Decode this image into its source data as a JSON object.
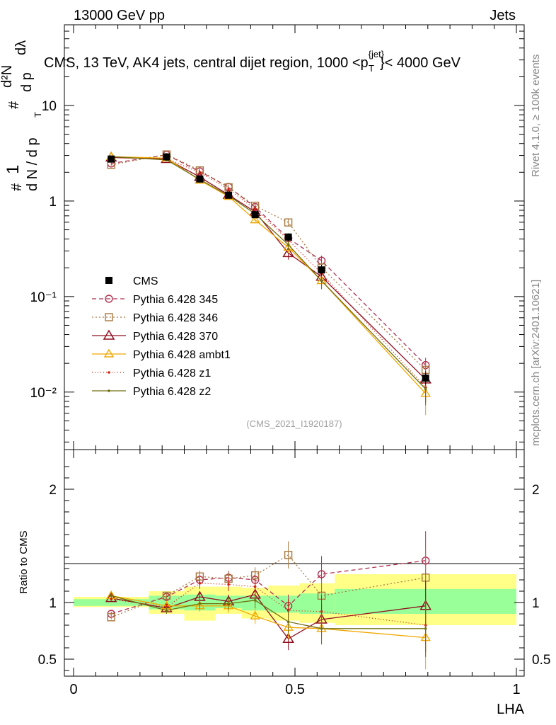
{
  "header": {
    "left": "13000 GeV pp",
    "right": "Jets"
  },
  "side_text": {
    "rivet": "Rivet 4.1.0, ≥ 100k events",
    "mcplots": "mcplots.cern.ch [arXiv:2401.10621]"
  },
  "chart_data": {
    "type": "line",
    "title": "CMS, 13 TeV, AK4 jets, central dijet region, 1000 <p",
    "title_sup": "{jet}",
    "title_sub": "T",
    "title_end": "}< 4000 GeV",
    "watermark": "(CMS_2021_I1920187)",
    "ylabel": "1/dN/dp_T  d²N/dp_T dλ",
    "ylabel_parts": {
      "hash1": "#",
      "one": "1",
      "dn": "d N / d p",
      "t": "T",
      "hash2": "#",
      "d2n": "d²N",
      "dpt": "d p",
      "dlambda": "dλ"
    },
    "xlabel": "LHA",
    "ratio_ylabel": "Ratio to CMS",
    "xlim": [
      0,
      1
    ],
    "ylim": [
      0.0025,
      70
    ],
    "ratio_ylim": [
      0.35,
      2.35
    ],
    "x_ticks": [
      "0",
      "0.5",
      "1"
    ],
    "y_ticks": [
      "10⁻²",
      "10⁻¹",
      "1",
      "10"
    ],
    "y_tick_values": [
      0.01,
      0.1,
      1,
      10
    ],
    "ratio_ticks": [
      "0.5",
      "1",
      "2"
    ],
    "ratio_tick_values": [
      0.5,
      1,
      2
    ],
    "bins": [
      [
        0.0,
        0.17
      ],
      [
        0.17,
        0.25
      ],
      [
        0.25,
        0.32
      ],
      [
        0.32,
        0.38
      ],
      [
        0.38,
        0.44
      ],
      [
        0.44,
        0.51
      ],
      [
        0.51,
        0.59
      ],
      [
        0.59,
        1.0
      ]
    ],
    "x": [
      0.085,
      0.21,
      0.285,
      0.35,
      0.41,
      0.485,
      0.56,
      0.795
    ],
    "data": {
      "name": "CMS",
      "values": [
        2.75,
        2.9,
        1.7,
        1.15,
        0.72,
        0.42,
        0.19,
        0.014
      ],
      "errors": [
        0.12,
        0.15,
        0.12,
        0.08,
        0.06,
        0.04,
        0.025,
        0.002
      ],
      "band_yellow": [
        [
          0.96,
          1.05
        ],
        [
          0.9,
          1.1
        ],
        [
          0.84,
          1.14
        ],
        [
          0.9,
          1.14
        ],
        [
          0.86,
          1.13
        ],
        [
          0.84,
          1.15
        ],
        [
          0.82,
          1.17
        ],
        [
          0.8,
          1.25
        ]
      ],
      "band_green": [
        [
          0.97,
          1.03
        ],
        [
          0.94,
          1.06
        ],
        [
          0.93,
          1.07
        ],
        [
          0.95,
          1.06
        ],
        [
          0.93,
          1.06
        ],
        [
          0.91,
          1.06
        ],
        [
          0.9,
          1.08
        ],
        [
          0.9,
          1.12
        ]
      ]
    },
    "series": [
      {
        "name": "Pythia 6.428 345",
        "color": "#b03050",
        "dash": "6,4",
        "marker": "circle",
        "ratio": [
          0.9,
          1.05,
          1.2,
          1.22,
          1.2,
          0.97,
          1.25,
          1.37
        ],
        "ratio_err": [
          0.02,
          0.03,
          0.05,
          0.06,
          0.07,
          0.1,
          0.16,
          0.26
        ]
      },
      {
        "name": "Pythia 6.428 346",
        "color": "#a87840",
        "dash": "2,3",
        "marker": "square",
        "ratio": [
          0.87,
          1.06,
          1.23,
          1.21,
          1.24,
          1.42,
          1.06,
          1.22
        ],
        "ratio_err": [
          0.02,
          0.03,
          0.05,
          0.06,
          0.07,
          0.12,
          0.14,
          0.25
        ]
      },
      {
        "name": "Pythia 6.428 370",
        "color": "#901020",
        "dash": "",
        "marker": "triangle",
        "ratio": [
          1.04,
          0.95,
          1.05,
          1.01,
          1.07,
          0.68,
          0.85,
          0.97
        ],
        "ratio_err": [
          0.02,
          0.03,
          0.05,
          0.06,
          0.07,
          0.1,
          0.14,
          0.22
        ]
      },
      {
        "name": "Pythia 6.428 ambt1",
        "color": "#f0a800",
        "dash": "",
        "marker": "triangle-open",
        "ratio": [
          1.06,
          0.97,
          0.97,
          0.97,
          0.88,
          0.78,
          0.77,
          0.69
        ],
        "ratio_err": [
          0.02,
          0.03,
          0.05,
          0.06,
          0.07,
          0.1,
          0.14,
          0.28
        ]
      },
      {
        "name": "Pythia 6.428 z1",
        "color": "#d02010",
        "dash": "1,3",
        "marker": "dot",
        "ratio": [
          1.03,
          0.96,
          1.17,
          1.16,
          1.14,
          0.93,
          0.92,
          0.8
        ],
        "ratio_err": [
          0.02,
          0.03,
          0.05,
          0.06,
          0.07,
          0.1,
          0.14,
          0.24
        ]
      },
      {
        "name": "Pythia 6.428 z2",
        "color": "#707010",
        "dash": "",
        "marker": "dot",
        "ratio": [
          1.06,
          0.93,
          0.99,
          0.99,
          1.02,
          0.83,
          0.77,
          0.77
        ],
        "ratio_err": [
          0.02,
          0.03,
          0.05,
          0.06,
          0.07,
          0.1,
          0.14,
          0.25
        ]
      }
    ]
  }
}
